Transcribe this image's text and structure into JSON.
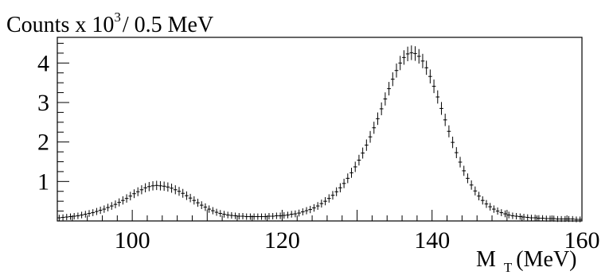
{
  "chart_data": {
    "type": "scatter",
    "style": "histogram-with-error-bars",
    "title": "",
    "ylabel": {
      "prefix": "Counts x 10",
      "exponent": "3",
      "suffix": "/ 0.5 MeV"
    },
    "xlabel": {
      "main": "M",
      "subscript": "T",
      "unit": "(MeV)"
    },
    "xlim": [
      90,
      160
    ],
    "ylim": [
      0,
      4.65
    ],
    "x_ticks": [
      "100",
      "120",
      "140",
      "160"
    ],
    "y_ticks": [
      "1",
      "2",
      "3",
      "4"
    ],
    "bin_width": 0.5,
    "grid": false,
    "legend": "none",
    "marker_color": "#000000",
    "series": [
      {
        "x": [
          90.25,
          90.75,
          91.25,
          91.75,
          92.25,
          92.75,
          93.25,
          93.75,
          94.25,
          94.75,
          95.25,
          95.75,
          96.25,
          96.75,
          97.25,
          97.75,
          98.25,
          98.75,
          99.25,
          99.75,
          100.25,
          100.75,
          101.25,
          101.75,
          102.25,
          102.75,
          103.25,
          103.75,
          104.25,
          104.75,
          105.25,
          105.75,
          106.25,
          106.75,
          107.25,
          107.75,
          108.25,
          108.75,
          109.25,
          109.75,
          110.25,
          110.75,
          111.25,
          111.75,
          112.25,
          112.75,
          113.25,
          113.75,
          114.25,
          114.75,
          115.25,
          115.75,
          116.25,
          116.75,
          117.25,
          117.75,
          118.25,
          118.75,
          119.25,
          119.75,
          120.25,
          120.75,
          121.25,
          121.75,
          122.25,
          122.75,
          123.25,
          123.75,
          124.25,
          124.75,
          125.25,
          125.75,
          126.25,
          126.75,
          127.25,
          127.75,
          128.25,
          128.75,
          129.25,
          129.75,
          130.25,
          130.75,
          131.25,
          131.75,
          132.25,
          132.75,
          133.25,
          133.75,
          134.25,
          134.75,
          135.25,
          135.75,
          136.25,
          136.75,
          137.25,
          137.75,
          138.25,
          138.75,
          139.25,
          139.75,
          140.25,
          140.75,
          141.25,
          141.75,
          142.25,
          142.75,
          143.25,
          143.75,
          144.25,
          144.75,
          145.25,
          145.75,
          146.25,
          146.75,
          147.25,
          147.75,
          148.25,
          148.75,
          149.25,
          149.75,
          150.25,
          150.75,
          151.25,
          151.75,
          152.25,
          152.75,
          153.25,
          153.75,
          154.25,
          154.75,
          155.25,
          155.75,
          156.25,
          156.75,
          157.25,
          157.75,
          158.25,
          158.75,
          159.25,
          159.75
        ],
        "y": [
          0.08,
          0.09,
          0.1,
          0.11,
          0.12,
          0.13,
          0.15,
          0.17,
          0.19,
          0.21,
          0.24,
          0.27,
          0.3,
          0.34,
          0.38,
          0.42,
          0.47,
          0.52,
          0.57,
          0.63,
          0.69,
          0.74,
          0.79,
          0.84,
          0.87,
          0.89,
          0.9,
          0.89,
          0.88,
          0.86,
          0.83,
          0.79,
          0.75,
          0.7,
          0.64,
          0.58,
          0.52,
          0.46,
          0.4,
          0.35,
          0.3,
          0.26,
          0.22,
          0.19,
          0.17,
          0.15,
          0.14,
          0.13,
          0.12,
          0.12,
          0.11,
          0.11,
          0.11,
          0.11,
          0.11,
          0.11,
          0.12,
          0.12,
          0.13,
          0.13,
          0.14,
          0.15,
          0.17,
          0.18,
          0.2,
          0.23,
          0.26,
          0.29,
          0.33,
          0.38,
          0.44,
          0.5,
          0.57,
          0.65,
          0.74,
          0.84,
          0.95,
          1.08,
          1.22,
          1.37,
          1.54,
          1.72,
          1.92,
          2.13,
          2.36,
          2.59,
          2.84,
          3.09,
          3.35,
          3.59,
          3.81,
          4.0,
          4.14,
          4.23,
          4.26,
          4.24,
          4.17,
          4.05,
          3.88,
          3.66,
          3.41,
          3.14,
          2.85,
          2.56,
          2.27,
          1.99,
          1.73,
          1.49,
          1.27,
          1.08,
          0.91,
          0.76,
          0.63,
          0.52,
          0.43,
          0.36,
          0.3,
          0.25,
          0.21,
          0.18,
          0.15,
          0.13,
          0.12,
          0.11,
          0.1,
          0.09,
          0.08,
          0.08,
          0.07,
          0.07,
          0.06,
          0.06,
          0.06,
          0.05,
          0.05,
          0.05,
          0.05,
          0.05,
          0.04,
          0.04
        ]
      }
    ]
  }
}
